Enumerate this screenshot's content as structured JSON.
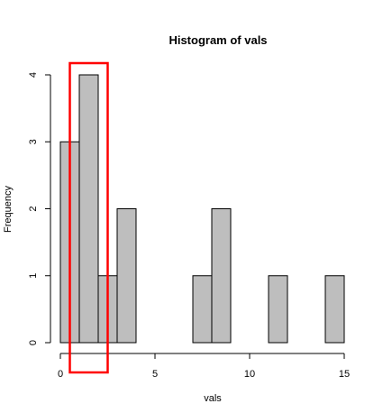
{
  "chart_data": {
    "type": "bar",
    "title": "Histogram of vals",
    "xlabel": "vals",
    "ylabel": "Frequency",
    "bin_width": 1,
    "bins": [
      {
        "start": 0,
        "end": 1,
        "count": 3
      },
      {
        "start": 1,
        "end": 2,
        "count": 4
      },
      {
        "start": 2,
        "end": 3,
        "count": 1
      },
      {
        "start": 3,
        "end": 4,
        "count": 2
      },
      {
        "start": 4,
        "end": 5,
        "count": 0
      },
      {
        "start": 5,
        "end": 6,
        "count": 0
      },
      {
        "start": 6,
        "end": 7,
        "count": 0
      },
      {
        "start": 7,
        "end": 8,
        "count": 1
      },
      {
        "start": 8,
        "end": 9,
        "count": 2
      },
      {
        "start": 9,
        "end": 10,
        "count": 0
      },
      {
        "start": 10,
        "end": 11,
        "count": 0
      },
      {
        "start": 11,
        "end": 12,
        "count": 1
      },
      {
        "start": 12,
        "end": 13,
        "count": 0
      },
      {
        "start": 13,
        "end": 14,
        "count": 0
      },
      {
        "start": 14,
        "end": 15,
        "count": 1
      }
    ],
    "x_ticks": [
      "0",
      "5",
      "10",
      "15"
    ],
    "y_ticks": [
      "0",
      "1",
      "2",
      "3",
      "4"
    ],
    "xlim": [
      0,
      15
    ],
    "ylim": [
      0,
      4
    ],
    "bar_color": "#bebebe",
    "highlight": {
      "x_range": [
        0.5,
        2.5
      ],
      "color": "#ff0000"
    }
  }
}
